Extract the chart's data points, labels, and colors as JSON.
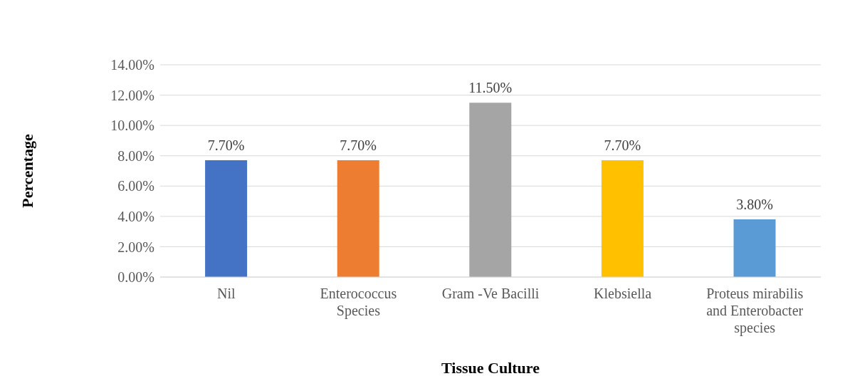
{
  "chart_data": {
    "type": "bar",
    "xlabel": "Tissue Culture",
    "ylabel": "Percentage",
    "categories": [
      "Nil",
      "Enterococcus Species",
      "Gram -Ve Bacilli",
      "Klebsiella",
      "Proteus mirabilis and Enterobacter species"
    ],
    "values": [
      7.7,
      7.7,
      11.5,
      7.7,
      3.8
    ],
    "colors": [
      "#4472c4",
      "#ed7d31",
      "#a5a5a5",
      "#ffc000",
      "#5b9bd5"
    ],
    "value_labels": [
      "7.70%",
      "7.70%",
      "11.50%",
      "7.70%",
      "3.80%"
    ],
    "ylim": [
      0,
      14
    ],
    "yticks": [
      {
        "value": 0,
        "label": "0.00%"
      },
      {
        "value": 2,
        "label": "2.00%"
      },
      {
        "value": 4,
        "label": "4.00%"
      },
      {
        "value": 6,
        "label": "6.00%"
      },
      {
        "value": 8,
        "label": "8.00%"
      },
      {
        "value": 10,
        "label": "10.00%"
      },
      {
        "value": 12,
        "label": "12.00%"
      },
      {
        "value": 14,
        "label": "14.00%"
      }
    ],
    "grid": "y",
    "legend": false
  }
}
